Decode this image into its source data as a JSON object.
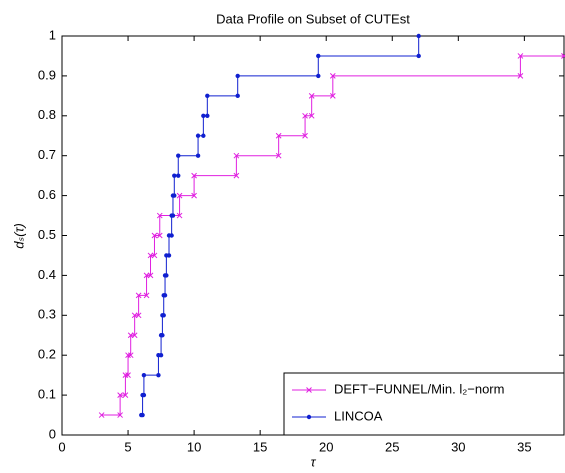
{
  "chart_data": {
    "type": "step",
    "title": "Data Profile on Subset of CUTEst",
    "x_label": "τ",
    "y_label": "dₛ(τ)",
    "xlim": [
      0,
      38
    ],
    "ylim": [
      0,
      1
    ],
    "xticks": [
      0,
      5,
      10,
      15,
      20,
      25,
      30,
      35
    ],
    "yticks": [
      0,
      0.1,
      0.2,
      0.3,
      0.4,
      0.5,
      0.6,
      0.7,
      0.8,
      0.9,
      1
    ],
    "grid": false,
    "legend": "lower right",
    "series": [
      {
        "name": "DEFT−FUNNEL/Min. l₂−norm",
        "color": "#e020e0",
        "marker": "x",
        "x": [
          3.0,
          4.4,
          4.8,
          5.0,
          5.2,
          5.5,
          5.8,
          6.4,
          6.7,
          7.0,
          7.4,
          8.9,
          10.0,
          13.2,
          16.4,
          18.4,
          18.9,
          20.5,
          34.7,
          38
        ],
        "values": [
          0.05,
          0.1,
          0.15,
          0.2,
          0.25,
          0.3,
          0.35,
          0.4,
          0.45,
          0.5,
          0.55,
          0.6,
          0.65,
          0.7,
          0.75,
          0.8,
          0.85,
          0.9,
          0.95,
          0.95
        ]
      },
      {
        "name": "LINCOA",
        "color": "#1020d0",
        "marker": "dot",
        "x": [
          6.0,
          6.1,
          6.2,
          7.3,
          7.5,
          7.6,
          7.7,
          7.8,
          7.9,
          8.1,
          8.3,
          8.4,
          8.5,
          8.8,
          10.3,
          10.7,
          11.0,
          13.3,
          19.4,
          27.0
        ],
        "values": [
          0.05,
          0.1,
          0.15,
          0.2,
          0.25,
          0.3,
          0.35,
          0.4,
          0.45,
          0.5,
          0.55,
          0.6,
          0.65,
          0.7,
          0.75,
          0.8,
          0.85,
          0.9,
          0.95,
          1.0
        ]
      }
    ]
  }
}
